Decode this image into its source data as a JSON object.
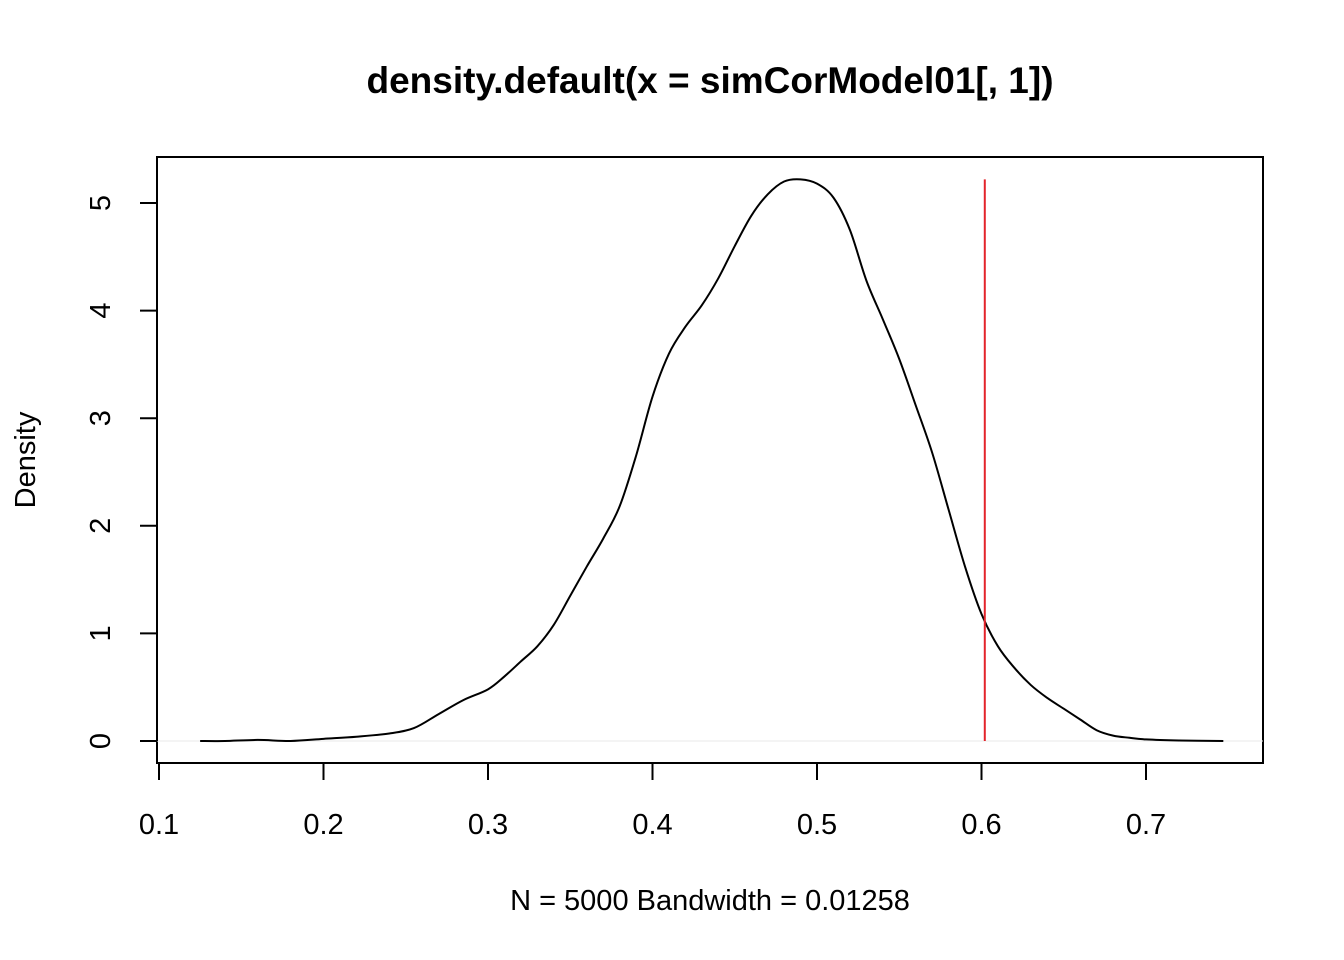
{
  "chart_data": {
    "type": "line",
    "title": "density.default(x = simCorModel01[, 1])",
    "xlabel": "N = 5000   Bandwidth = 0.01258",
    "ylabel": "Density",
    "xlim": [
      0.1,
      0.77
    ],
    "ylim": [
      0,
      5.4
    ],
    "x_ticks": [
      0.1,
      0.2,
      0.3,
      0.4,
      0.5,
      0.6,
      0.7
    ],
    "x_tick_labels": [
      "0.1",
      "0.2",
      "0.3",
      "0.4",
      "0.5",
      "0.6",
      "0.7"
    ],
    "y_ticks": [
      0,
      1,
      2,
      3,
      4,
      5
    ],
    "y_tick_labels": [
      "0",
      "1",
      "2",
      "3",
      "4",
      "5"
    ],
    "grid": false,
    "series": [
      {
        "color": "#000000",
        "x": [
          0.125,
          0.14,
          0.16,
          0.18,
          0.2,
          0.22,
          0.24,
          0.255,
          0.27,
          0.285,
          0.3,
          0.31,
          0.32,
          0.33,
          0.34,
          0.35,
          0.36,
          0.37,
          0.38,
          0.39,
          0.4,
          0.41,
          0.42,
          0.43,
          0.44,
          0.45,
          0.46,
          0.47,
          0.48,
          0.49,
          0.5,
          0.51,
          0.52,
          0.53,
          0.54,
          0.55,
          0.56,
          0.57,
          0.58,
          0.59,
          0.6,
          0.61,
          0.62,
          0.63,
          0.64,
          0.65,
          0.66,
          0.67,
          0.68,
          0.69,
          0.7,
          0.72,
          0.747
        ],
        "y": [
          0.0,
          0.0,
          0.01,
          0.0,
          0.02,
          0.04,
          0.07,
          0.12,
          0.25,
          0.38,
          0.48,
          0.6,
          0.74,
          0.88,
          1.08,
          1.35,
          1.62,
          1.88,
          2.18,
          2.65,
          3.2,
          3.6,
          3.85,
          4.05,
          4.3,
          4.6,
          4.88,
          5.08,
          5.2,
          5.22,
          5.18,
          5.05,
          4.75,
          4.28,
          3.92,
          3.55,
          3.12,
          2.68,
          2.15,
          1.62,
          1.18,
          0.88,
          0.68,
          0.52,
          0.4,
          0.3,
          0.2,
          0.1,
          0.05,
          0.03,
          0.015,
          0.005,
          0.0
        ]
      }
    ],
    "reference_line": {
      "x": 0.602,
      "y_top": 5.22,
      "color": "#e3242b"
    }
  }
}
